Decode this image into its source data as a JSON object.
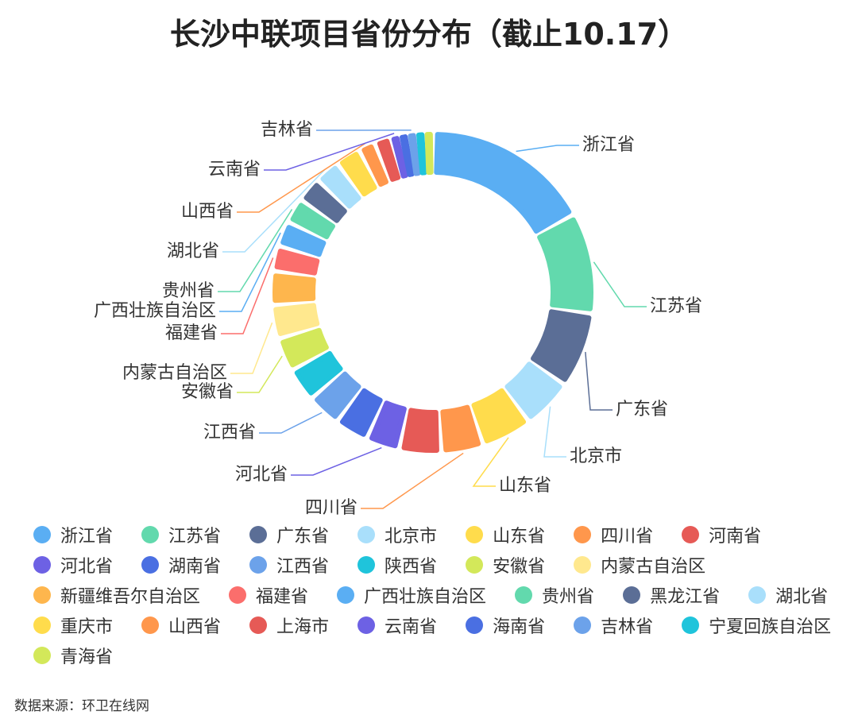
{
  "chart_data": {
    "type": "donut",
    "title": "长沙中联项目省份分布（截止10.17）",
    "categories": [
      "浙江省",
      "江苏省",
      "广东省",
      "北京市",
      "山东省",
      "四川省",
      "河南省",
      "河北省",
      "湖南省",
      "江西省",
      "陕西省",
      "安徽省",
      "内蒙古自治区",
      "新疆维吾尔自治区",
      "福建省",
      "广西壮族自治区",
      "贵州省",
      "黑龙江省",
      "湖北省",
      "重庆市",
      "山西省",
      "上海市",
      "云南省",
      "海南省",
      "吉林省",
      "宁夏回族自治区",
      "青海省"
    ],
    "values": [
      20,
      12,
      9,
      6,
      6,
      5,
      5,
      4,
      4,
      4,
      4,
      4,
      4,
      4,
      3,
      3,
      3,
      3,
      3,
      3,
      2,
      2,
      1,
      1,
      1,
      1,
      1
    ],
    "colors": [
      "#5aaef3",
      "#62d9ad",
      "#5b6e96",
      "#a9dffb",
      "#ffdc4c",
      "#ff974c",
      "#e65a56",
      "#6d61e4",
      "#4a6fe2",
      "#6ca2ea",
      "#1fc4db",
      "#d3e85a",
      "#ffe88e",
      "#feb64d",
      "#fb6e6c",
      "#5aaef3",
      "#62d9ad",
      "#5b6e96",
      "#a9dffb",
      "#ffdc4c",
      "#ff974c",
      "#e65a56",
      "#6d61e4",
      "#4a6fe2",
      "#6ca2ea",
      "#1fc4db",
      "#d3e85a"
    ],
    "source": "数据来源：环卫在线网"
  }
}
